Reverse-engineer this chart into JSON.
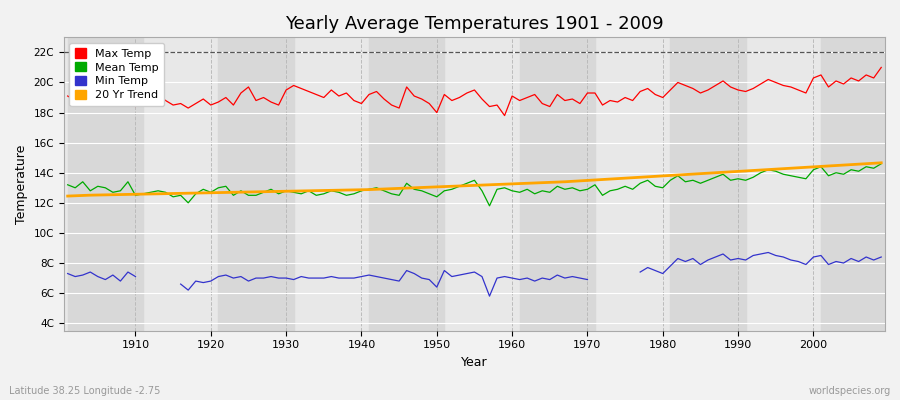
{
  "title": "Yearly Average Temperatures 1901 - 2009",
  "xlabel": "Year",
  "ylabel": "Temperature",
  "lat_lon_label": "Latitude 38.25 Longitude -2.75",
  "credit": "worldspecies.org",
  "year_start": 1901,
  "year_end": 2009,
  "yticks": [
    4,
    6,
    8,
    10,
    12,
    14,
    16,
    18,
    20,
    22
  ],
  "ytick_labels": [
    "4C",
    "6C",
    "8C",
    "10C",
    "12C",
    "14C",
    "16C",
    "18C",
    "20C",
    "22C"
  ],
  "dashed_line_y": 22,
  "fig_bg_color": "#f0f0f0",
  "plot_bg_color": "#e8e8e8",
  "max_temp_color": "#ff0000",
  "mean_temp_color": "#00aa00",
  "min_temp_color": "#3333cc",
  "trend_color": "#ffa500",
  "legend_labels": [
    "Max Temp",
    "Mean Temp",
    "Min Temp",
    "20 Yr Trend"
  ],
  "max_temp": [
    19.1,
    18.8,
    18.5,
    19.3,
    18.7,
    19.0,
    18.8,
    18.6,
    19.5,
    18.4,
    18.7,
    18.9,
    19.2,
    18.8,
    18.5,
    18.6,
    18.3,
    18.6,
    18.9,
    18.5,
    18.7,
    19.0,
    18.5,
    19.3,
    19.7,
    18.8,
    19.0,
    18.7,
    18.5,
    19.5,
    19.8,
    19.6,
    19.4,
    19.2,
    19.0,
    19.5,
    19.1,
    19.3,
    18.8,
    18.6,
    19.2,
    19.4,
    18.9,
    18.5,
    18.3,
    19.7,
    19.1,
    18.9,
    18.6,
    18.0,
    19.2,
    18.8,
    19.0,
    19.3,
    19.5,
    18.9,
    18.4,
    18.5,
    17.8,
    19.1,
    18.8,
    19.0,
    19.2,
    18.6,
    18.4,
    19.2,
    18.8,
    18.9,
    18.6,
    19.3,
    19.3,
    18.5,
    18.8,
    18.7,
    19.0,
    18.8,
    19.4,
    19.6,
    19.2,
    19.0,
    19.5,
    20.0,
    19.8,
    19.6,
    19.3,
    19.5,
    19.8,
    20.1,
    19.7,
    19.5,
    19.4,
    19.6,
    19.9,
    20.2,
    20.0,
    19.8,
    19.7,
    19.5,
    19.3,
    20.3,
    20.5,
    19.7,
    20.1,
    19.9,
    20.3,
    20.1,
    20.5,
    20.3,
    21.0
  ],
  "mean_temp": [
    13.2,
    13.0,
    13.4,
    12.8,
    13.1,
    13.0,
    12.7,
    12.8,
    13.4,
    12.5,
    12.6,
    12.7,
    12.8,
    12.7,
    12.4,
    12.5,
    12.0,
    12.6,
    12.9,
    12.7,
    13.0,
    13.1,
    12.5,
    12.8,
    12.5,
    12.5,
    12.7,
    12.9,
    12.6,
    12.8,
    12.7,
    12.6,
    12.8,
    12.5,
    12.6,
    12.8,
    12.7,
    12.5,
    12.6,
    12.8,
    12.9,
    13.0,
    12.8,
    12.6,
    12.5,
    13.3,
    12.9,
    12.8,
    12.6,
    12.4,
    12.8,
    12.9,
    13.1,
    13.3,
    13.5,
    12.8,
    11.8,
    12.9,
    13.0,
    12.8,
    12.7,
    12.9,
    12.6,
    12.8,
    12.7,
    13.1,
    12.9,
    13.0,
    12.8,
    12.9,
    13.2,
    12.5,
    12.8,
    12.9,
    13.1,
    12.9,
    13.3,
    13.5,
    13.1,
    13.0,
    13.5,
    13.8,
    13.4,
    13.5,
    13.3,
    13.5,
    13.7,
    13.9,
    13.5,
    13.6,
    13.5,
    13.7,
    14.0,
    14.2,
    14.1,
    13.9,
    13.8,
    13.7,
    13.6,
    14.2,
    14.4,
    13.8,
    14.0,
    13.9,
    14.2,
    14.1,
    14.4,
    14.3,
    14.6
  ],
  "min_temp_raw": [
    7.3,
    7.1,
    7.2,
    7.4,
    7.1,
    6.9,
    7.2,
    6.8,
    7.4,
    7.1,
    null,
    null,
    null,
    null,
    null,
    6.6,
    6.2,
    6.8,
    6.7,
    6.8,
    7.1,
    7.2,
    7.0,
    7.1,
    6.8,
    7.0,
    7.0,
    7.1,
    7.0,
    7.0,
    6.9,
    7.1,
    7.0,
    7.0,
    7.0,
    7.1,
    7.0,
    7.0,
    7.0,
    7.1,
    7.2,
    7.1,
    7.0,
    6.9,
    6.8,
    7.5,
    7.3,
    7.0,
    6.9,
    6.4,
    7.5,
    7.1,
    7.2,
    7.3,
    7.4,
    7.1,
    5.8,
    7.0,
    7.1,
    7.0,
    6.9,
    7.0,
    6.8,
    7.0,
    6.9,
    7.2,
    7.0,
    7.1,
    7.0,
    6.9,
    null,
    null,
    null,
    null,
    null,
    null,
    7.4,
    7.7,
    7.5,
    7.3,
    7.8,
    8.3,
    8.1,
    8.3,
    7.9,
    8.2,
    8.4,
    8.6,
    8.2,
    8.3,
    8.2,
    8.5,
    8.6,
    8.7,
    8.5,
    8.4,
    8.2,
    8.1,
    7.9,
    8.4,
    8.5,
    7.9,
    8.1,
    8.0,
    8.3,
    8.1,
    8.4,
    8.2,
    8.4
  ],
  "trend": [
    12.45,
    12.47,
    12.49,
    12.51,
    12.52,
    12.53,
    12.54,
    12.55,
    12.56,
    12.57,
    12.58,
    12.59,
    12.6,
    12.61,
    12.62,
    12.63,
    12.64,
    12.65,
    12.66,
    12.67,
    12.68,
    12.69,
    12.7,
    12.71,
    12.72,
    12.73,
    12.74,
    12.75,
    12.76,
    12.77,
    12.78,
    12.79,
    12.8,
    12.81,
    12.82,
    12.83,
    12.84,
    12.85,
    12.86,
    12.87,
    12.88,
    12.9,
    12.92,
    12.94,
    12.96,
    12.98,
    13.0,
    13.02,
    13.04,
    13.06,
    13.08,
    13.1,
    13.12,
    13.14,
    13.16,
    13.18,
    13.2,
    13.22,
    13.24,
    13.26,
    13.28,
    13.3,
    13.32,
    13.34,
    13.36,
    13.38,
    13.4,
    13.43,
    13.46,
    13.49,
    13.52,
    13.55,
    13.58,
    13.61,
    13.64,
    13.67,
    13.7,
    13.73,
    13.76,
    13.79,
    13.82,
    13.85,
    13.88,
    13.91,
    13.94,
    13.97,
    14.0,
    14.03,
    14.06,
    14.09,
    14.12,
    14.15,
    14.18,
    14.21,
    14.24,
    14.27,
    14.3,
    14.33,
    14.36,
    14.39,
    14.42,
    14.45,
    14.48,
    14.51,
    14.54,
    14.57,
    14.6,
    14.63,
    14.66
  ]
}
